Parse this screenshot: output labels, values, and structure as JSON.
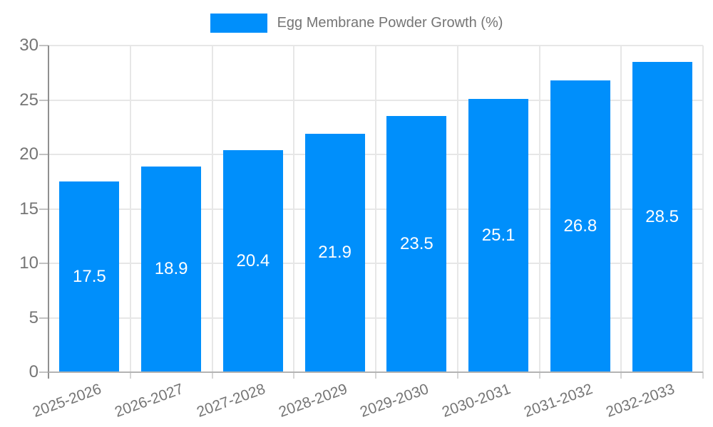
{
  "chart_data": {
    "type": "bar",
    "title": "Egg Membrane Powder Growth (%)",
    "legend_entries": [
      "Egg Membrane Powder Growth (%)"
    ],
    "legend_position": "top",
    "categories": [
      "2025-2026",
      "2026-2027",
      "2027-2028",
      "2028-2029",
      "2029-2030",
      "2030-2031",
      "2031-2032",
      "2032-2033"
    ],
    "series": [
      {
        "name": "Egg Membrane Powder Growth (%)",
        "values": [
          17.5,
          18.9,
          20.4,
          21.9,
          23.5,
          25.1,
          26.8,
          28.5
        ]
      }
    ],
    "value_labels": [
      "17.5",
      "18.9",
      "20.4",
      "21.9",
      "23.5",
      "25.1",
      "26.8",
      "28.5"
    ],
    "xlabel": "",
    "ylabel": "",
    "ylim": [
      0,
      30
    ],
    "yticks": [
      0,
      5,
      10,
      15,
      20,
      25,
      30
    ],
    "ytick_labels": [
      "0",
      "5",
      "10",
      "15",
      "20",
      "25",
      "30"
    ],
    "grid": "on",
    "x_label_rotation_deg": -20,
    "colors": {
      "bar": "#008FFB",
      "value_label": "#ffffff",
      "axis_text": "#757575",
      "gridline": "#e7e7e7",
      "y_axis_line": "#909090",
      "x_axis_line": "#b3b3b3",
      "background": "#ffffff"
    }
  }
}
